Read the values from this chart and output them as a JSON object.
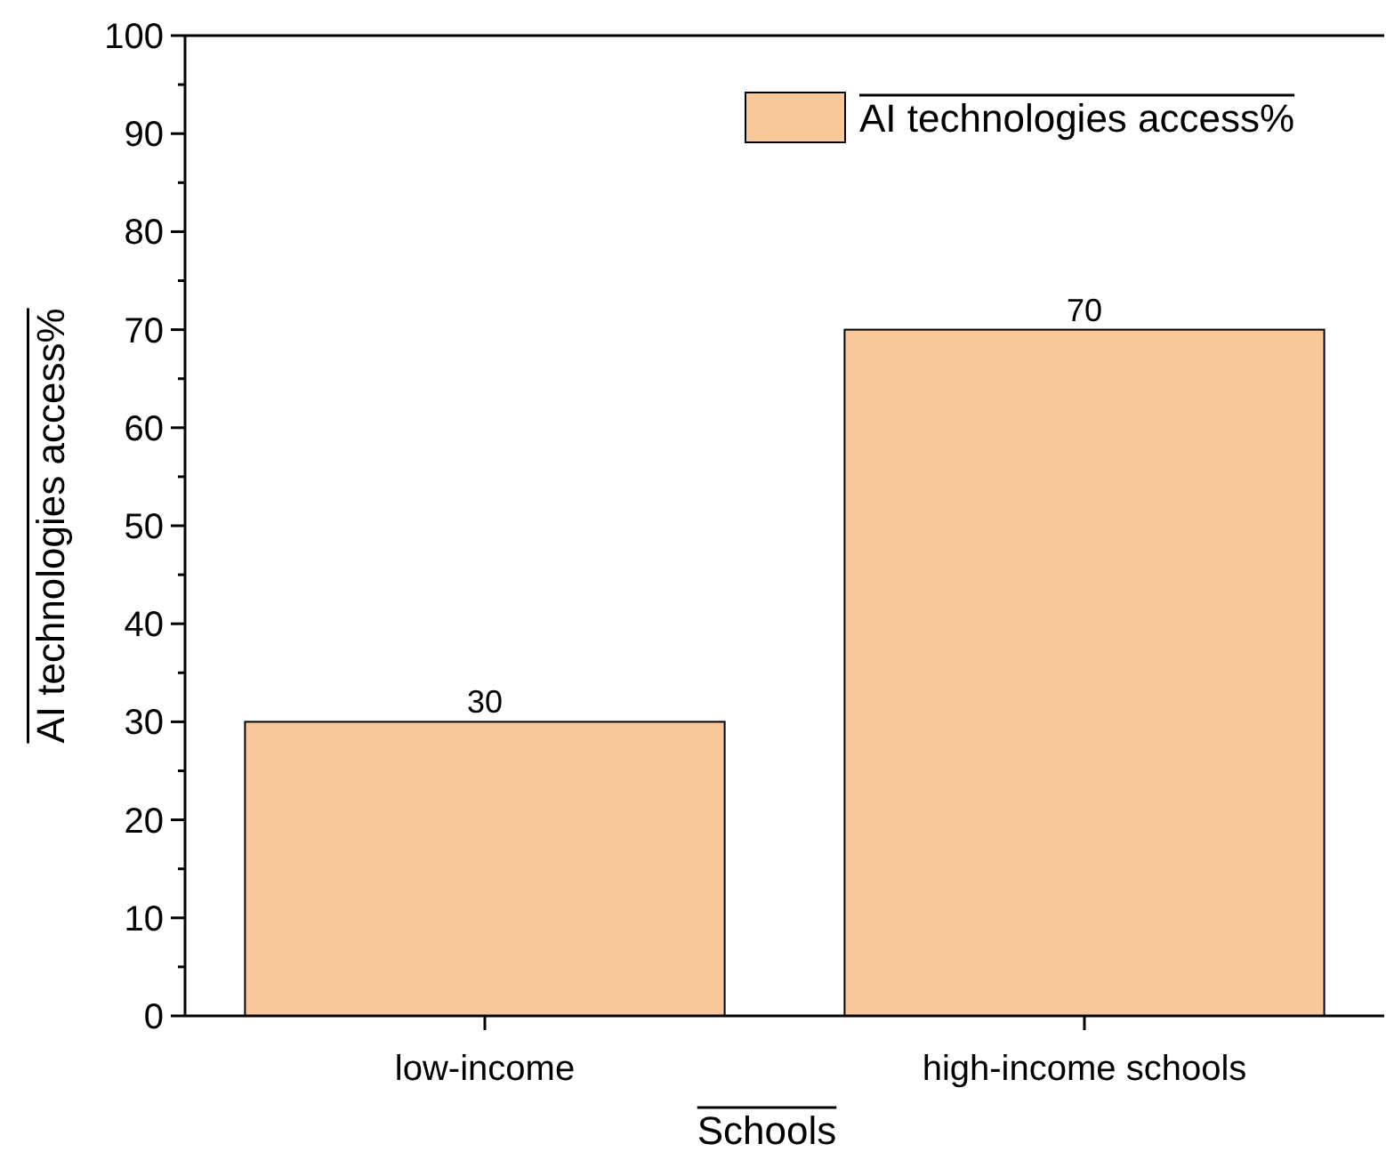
{
  "chart_data": {
    "type": "bar",
    "xlabel": "Schools",
    "ylabel": "AI technologies access%",
    "categories": [
      "low-income",
      "high-income schools"
    ],
    "series": [
      {
        "name": "AI technologies access%",
        "color": "#f9c89a",
        "values": [
          30,
          70
        ]
      }
    ],
    "ylim": [
      0,
      100
    ],
    "yticks": [
      0,
      {
        "value": 5,
        "label": null
      },
      10,
      {
        "value": 15,
        "label": null
      },
      20,
      {
        "value": 25,
        "label": null
      },
      30,
      {
        "value": 35,
        "label": null
      },
      40,
      {
        "value": 45,
        "label": null
      },
      50,
      {
        "value": 55,
        "label": null
      },
      60,
      {
        "value": 65,
        "label": null
      },
      70,
      {
        "value": 75,
        "label": null
      },
      80,
      {
        "value": 85,
        "label": null
      },
      90,
      {
        "value": 95,
        "label": null
      },
      100
    ],
    "data_labels": true,
    "legend": "top right",
    "grid": false
  }
}
